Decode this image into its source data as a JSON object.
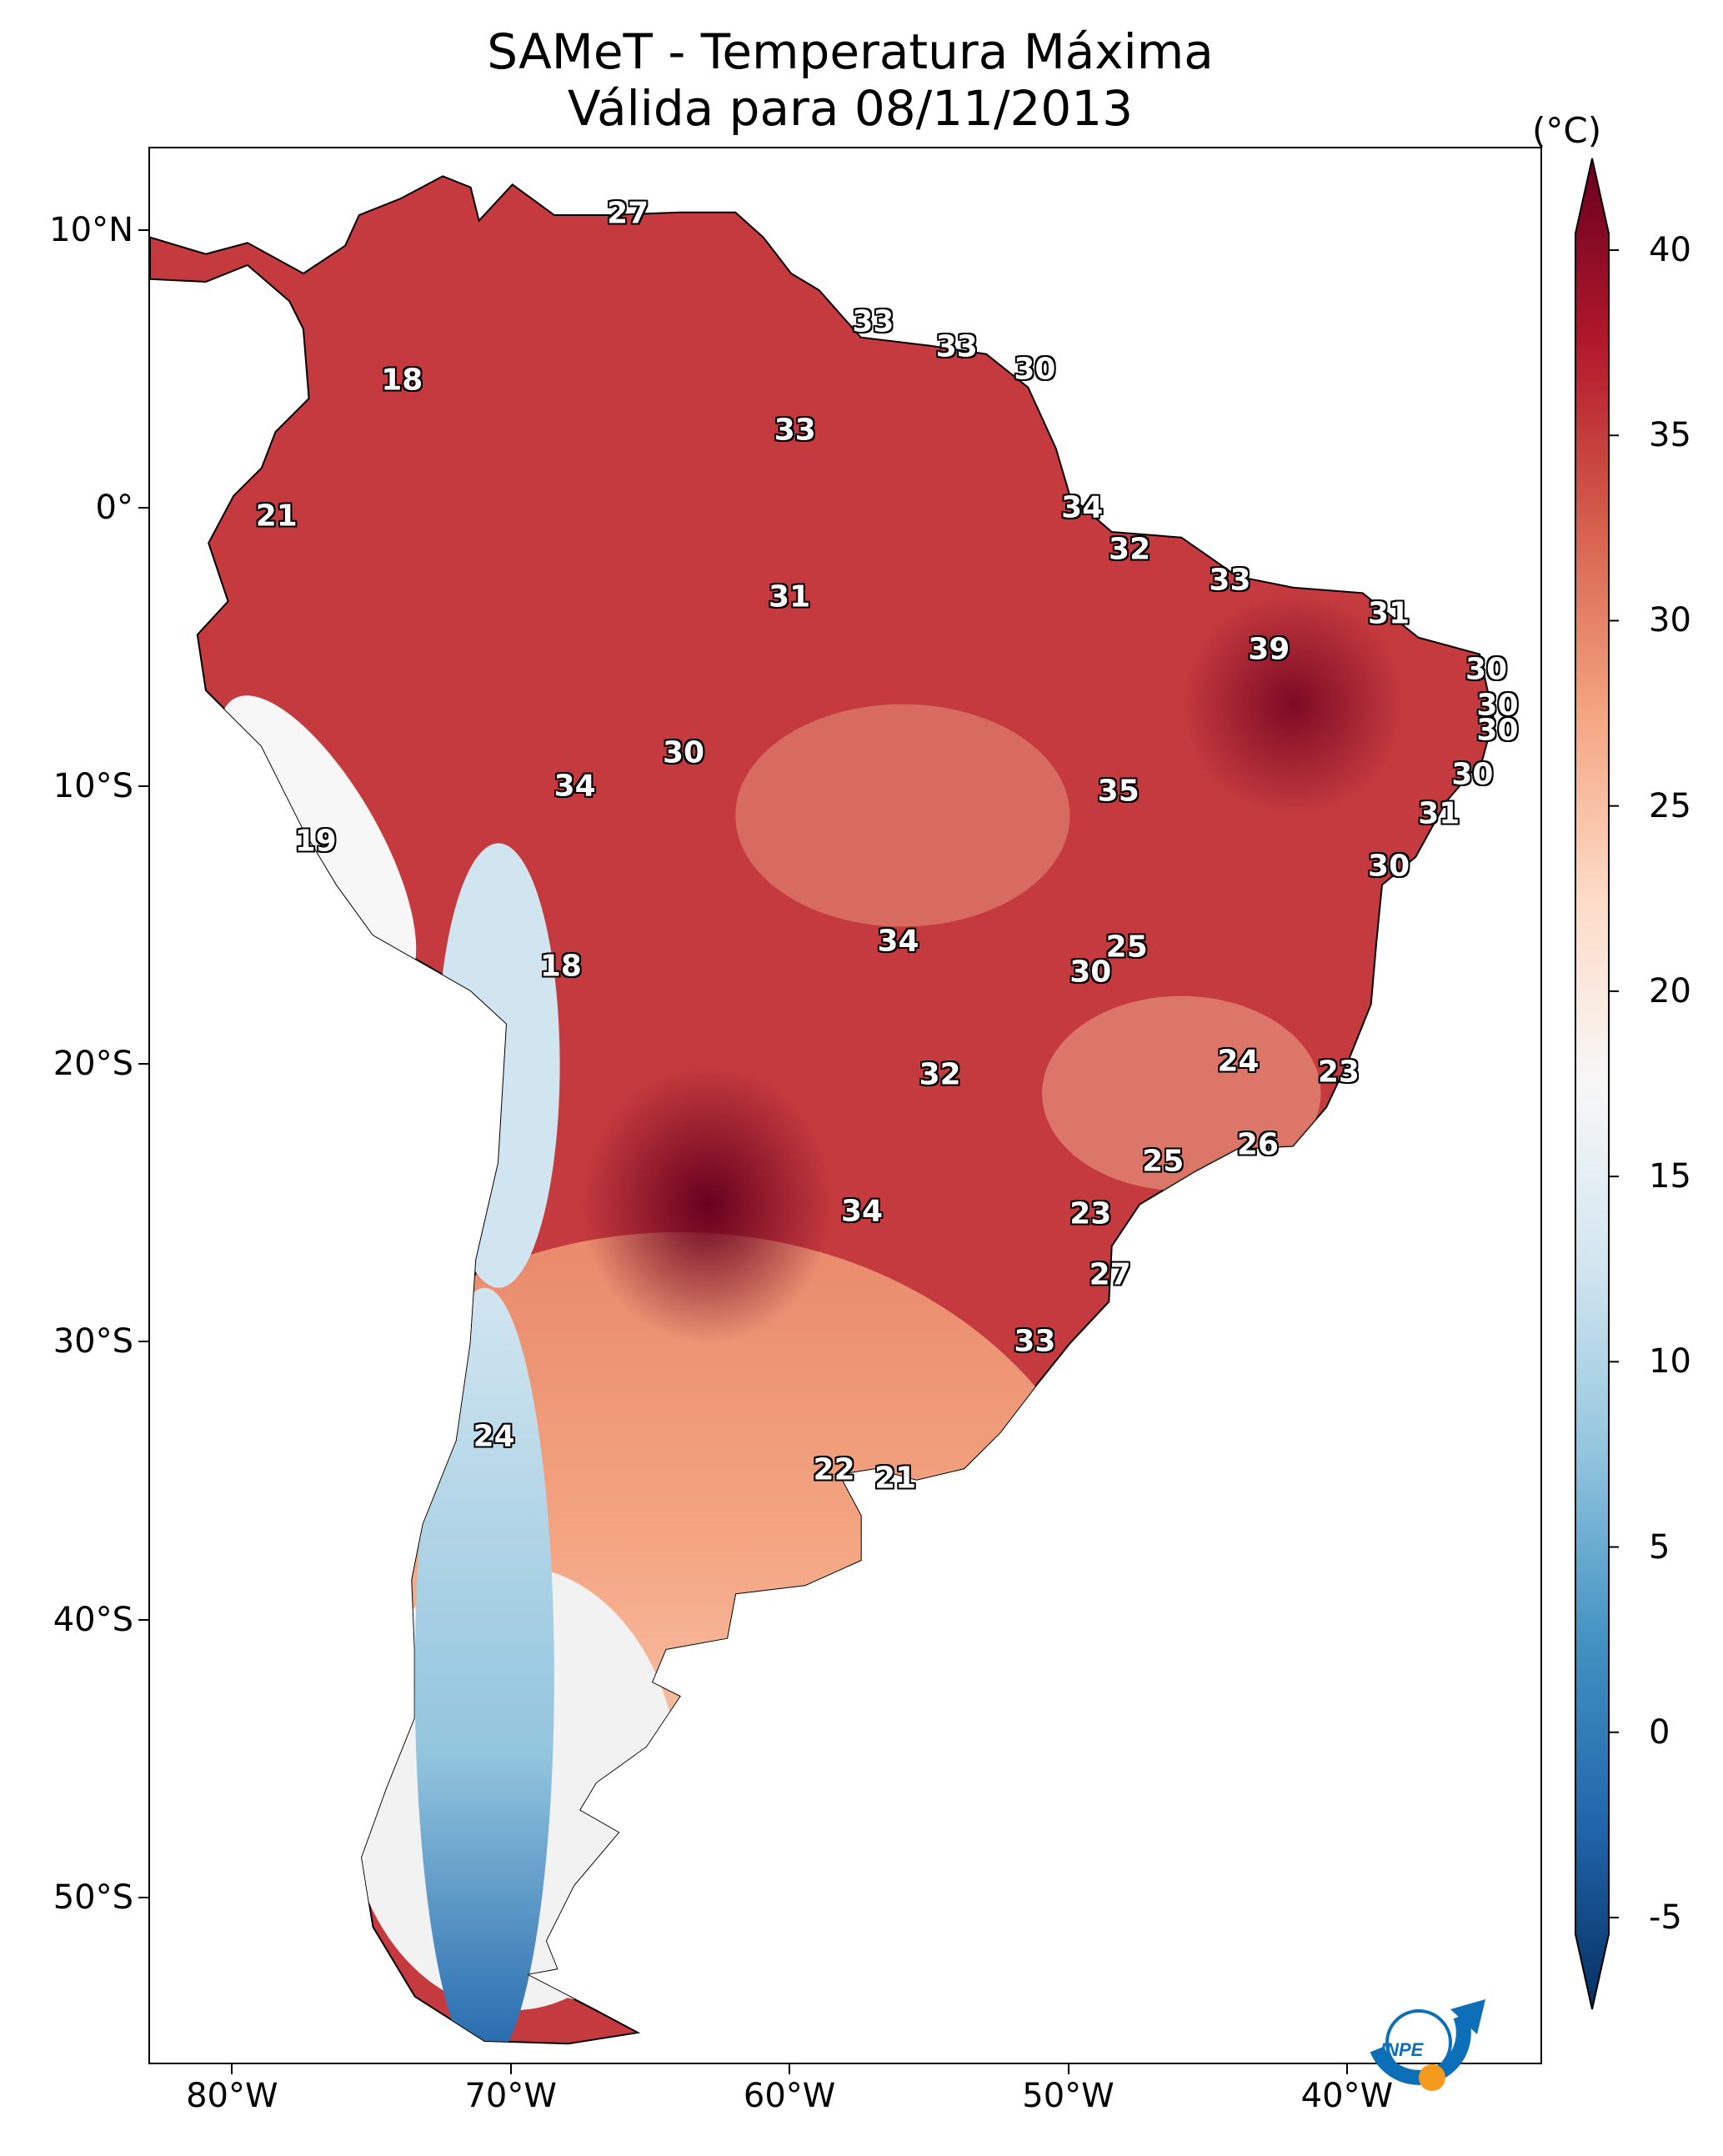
{
  "title": {
    "line1": "SAMeT - Temperatura Máxima",
    "line2": "Válida para 08/11/2013"
  },
  "map": {
    "lon_range": [
      -83,
      -33
    ],
    "lat_range": [
      -56,
      13
    ],
    "lat_ticks": [
      "10°N",
      "0°",
      "10°S",
      "20°S",
      "30°S",
      "40°S",
      "50°S"
    ],
    "lat_tick_values": [
      10,
      0,
      -10,
      -20,
      -30,
      -40,
      -50
    ],
    "lon_ticks": [
      "80°W",
      "70°W",
      "60°W",
      "50°W",
      "40°W"
    ],
    "lon_tick_values": [
      -80,
      -70,
      -60,
      -50,
      -40
    ],
    "stations": [
      {
        "label": "27",
        "lon": -65.8,
        "lat": 10.6
      },
      {
        "label": "18",
        "lon": -73.9,
        "lat": 4.6
      },
      {
        "label": "33",
        "lon": -57.0,
        "lat": 6.7
      },
      {
        "label": "33",
        "lon": -54.0,
        "lat": 5.8
      },
      {
        "label": "30",
        "lon": -51.2,
        "lat": 5.0
      },
      {
        "label": "33",
        "lon": -59.8,
        "lat": 2.8
      },
      {
        "label": "21",
        "lon": -78.4,
        "lat": -0.3
      },
      {
        "label": "34",
        "lon": -49.5,
        "lat": 0.0
      },
      {
        "label": "32",
        "lon": -47.8,
        "lat": -1.5
      },
      {
        "label": "33",
        "lon": -44.2,
        "lat": -2.6
      },
      {
        "label": "31",
        "lon": -60.0,
        "lat": -3.2
      },
      {
        "label": "31",
        "lon": -38.5,
        "lat": -3.8
      },
      {
        "label": "39",
        "lon": -42.8,
        "lat": -5.1
      },
      {
        "label": "30",
        "lon": -35.0,
        "lat": -5.8
      },
      {
        "label": "30",
        "lon": -34.6,
        "lat": -7.1
      },
      {
        "label": "30",
        "lon": -34.6,
        "lat": -8.0
      },
      {
        "label": "30",
        "lon": -63.8,
        "lat": -8.8
      },
      {
        "label": "34",
        "lon": -67.7,
        "lat": -10.0
      },
      {
        "label": "35",
        "lon": -48.2,
        "lat": -10.2
      },
      {
        "label": "30",
        "lon": -35.5,
        "lat": -9.6
      },
      {
        "label": "31",
        "lon": -36.7,
        "lat": -11.0
      },
      {
        "label": "19",
        "lon": -77.0,
        "lat": -12.0
      },
      {
        "label": "30",
        "lon": -38.5,
        "lat": -12.9
      },
      {
        "label": "34",
        "lon": -56.1,
        "lat": -15.6
      },
      {
        "label": "25",
        "lon": -47.9,
        "lat": -15.8
      },
      {
        "label": "30",
        "lon": -49.2,
        "lat": -16.7
      },
      {
        "label": "18",
        "lon": -68.2,
        "lat": -16.5
      },
      {
        "label": "24",
        "lon": -43.9,
        "lat": -19.9
      },
      {
        "label": "23",
        "lon": -40.3,
        "lat": -20.3
      },
      {
        "label": "32",
        "lon": -54.6,
        "lat": -20.4
      },
      {
        "label": "26",
        "lon": -43.2,
        "lat": -22.9
      },
      {
        "label": "25",
        "lon": -46.6,
        "lat": -23.5
      },
      {
        "label": "34",
        "lon": -57.4,
        "lat": -25.3
      },
      {
        "label": "23",
        "lon": -49.2,
        "lat": -25.4
      },
      {
        "label": "27",
        "lon": -48.5,
        "lat": -27.6
      },
      {
        "label": "33",
        "lon": -51.2,
        "lat": -30.0
      },
      {
        "label": "24",
        "lon": -70.6,
        "lat": -33.4
      },
      {
        "label": "22",
        "lon": -58.4,
        "lat": -34.6
      },
      {
        "label": "21",
        "lon": -56.2,
        "lat": -34.9
      }
    ]
  },
  "colorbar": {
    "unit": "(°C)",
    "ticks": [
      "40",
      "35",
      "30",
      "25",
      "20",
      "15",
      "10",
      "5",
      "0",
      "-5"
    ],
    "tick_values": [
      40,
      35,
      30,
      25,
      20,
      15,
      10,
      5,
      0,
      -5
    ],
    "range": [
      -5,
      40
    ],
    "colors": [
      "#053061",
      "#2166ac",
      "#4393c3",
      "#92c5de",
      "#d1e5f0",
      "#f7f7f7",
      "#fddbc7",
      "#f4a582",
      "#d6604d",
      "#b2182b",
      "#67001f"
    ]
  },
  "logo": {
    "text": "INPE"
  }
}
